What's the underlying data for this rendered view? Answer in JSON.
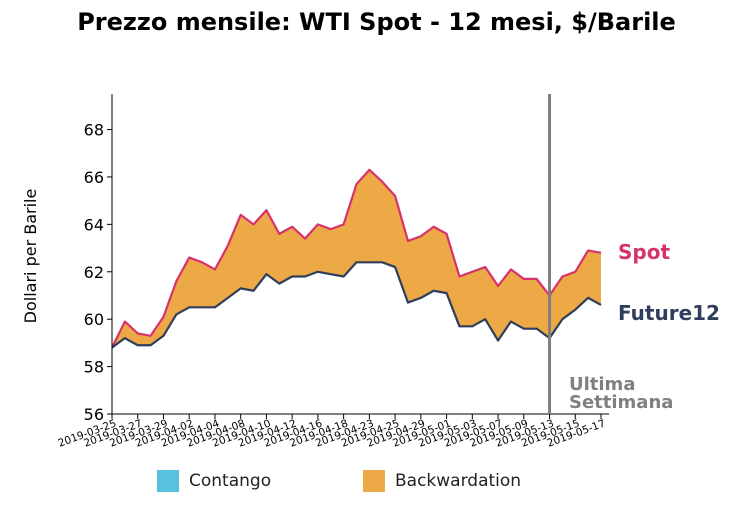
{
  "chart_data": {
    "type": "area",
    "title": "Prezzo mensile: WTI Spot - 12 mesi, $/Barile",
    "ylabel": "Dollari per Barile",
    "ylim": [
      56,
      69.5
    ],
    "yticks": [
      56,
      58,
      60,
      62,
      64,
      66,
      68
    ],
    "grid": false,
    "x": [
      "2019-03-25",
      "2019-03-26",
      "2019-03-27",
      "2019-03-28",
      "2019-03-29",
      "2019-04-01",
      "2019-04-02",
      "2019-04-03",
      "2019-04-04",
      "2019-04-05",
      "2019-04-08",
      "2019-04-09",
      "2019-04-10",
      "2019-04-11",
      "2019-04-12",
      "2019-04-15",
      "2019-04-16",
      "2019-04-17",
      "2019-04-18",
      "2019-04-22",
      "2019-04-23",
      "2019-04-24",
      "2019-04-25",
      "2019-04-26",
      "2019-04-29",
      "2019-04-30",
      "2019-05-01",
      "2019-05-02",
      "2019-05-03",
      "2019-05-06",
      "2019-05-07",
      "2019-05-08",
      "2019-05-09",
      "2019-05-10",
      "2019-05-13",
      "2019-05-14",
      "2019-05-15",
      "2019-05-16",
      "2019-05-17"
    ],
    "xtick_labels": [
      "2019-03-25",
      "2019-03-27",
      "2019-03-29",
      "2019-04-02",
      "2019-04-04",
      "2019-04-08",
      "2019-04-10",
      "2019-04-12",
      "2019-04-16",
      "2019-04-18",
      "2019-04-23",
      "2019-04-25",
      "2019-04-29",
      "2019-05-01",
      "2019-05-03",
      "2019-05-07",
      "2019-05-09",
      "2019-05-13",
      "2019-05-15",
      "2019-05-17"
    ],
    "series": [
      {
        "name": "Spot",
        "color": "#d6336c",
        "values": [
          58.8,
          59.9,
          59.4,
          59.3,
          60.1,
          61.6,
          62.6,
          62.4,
          62.1,
          63.1,
          64.4,
          64.0,
          64.6,
          63.6,
          63.9,
          63.4,
          64.0,
          63.8,
          64.0,
          65.7,
          66.3,
          65.8,
          65.2,
          63.3,
          63.5,
          63.9,
          63.6,
          61.8,
          62.0,
          62.2,
          61.4,
          62.1,
          61.7,
          61.7,
          61.0,
          61.8,
          62.0,
          62.9,
          62.8
        ]
      },
      {
        "name": "Future12",
        "color": "#2f3e5c",
        "values": [
          58.8,
          59.2,
          58.9,
          58.9,
          59.3,
          60.2,
          60.5,
          60.5,
          60.5,
          60.9,
          61.3,
          61.2,
          61.9,
          61.5,
          61.8,
          61.8,
          62.0,
          61.9,
          61.8,
          62.4,
          62.4,
          62.4,
          62.2,
          60.7,
          60.9,
          61.2,
          61.1,
          59.7,
          59.7,
          60.0,
          59.1,
          59.9,
          59.6,
          59.6,
          59.2,
          60.0,
          60.4,
          60.9,
          60.6
        ]
      }
    ],
    "fill": {
      "spot_above_future": "#eca945",
      "spot_below_future": "#56c2dd"
    },
    "legend": {
      "position": "bottom",
      "items": [
        {
          "label": "Contango",
          "color": "#56c2dd"
        },
        {
          "label": "Backwardation",
          "color": "#eca945"
        }
      ]
    },
    "marker": {
      "at": "2019-05-13",
      "label_line1": "Ultima",
      "label_line2": "Settimana",
      "color": "#808080"
    },
    "series_labels": {
      "spot": "Spot",
      "future": "Future12"
    }
  }
}
